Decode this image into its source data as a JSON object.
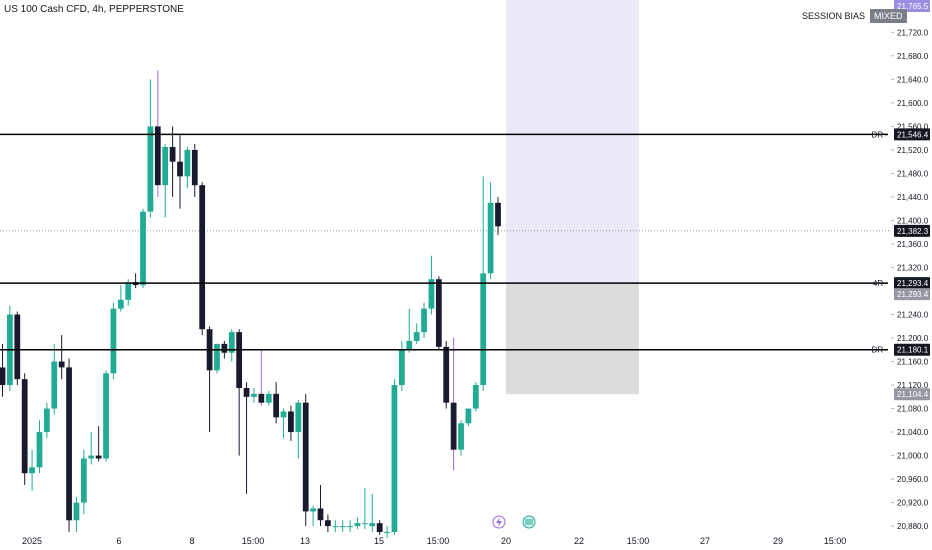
{
  "header": {
    "symbol_label": "US 100 Cash CFD, 4h, PEPPERSTONE"
  },
  "session_bias": {
    "label": "SESSION BIAS",
    "value": "MIXED"
  },
  "colors": {
    "up": "#22ab94",
    "down": "#1a1a2e",
    "wick_up": "#22ab94",
    "wick_spike": "#9c6ade",
    "level_line": "#000000",
    "lavender_zone": "#ece8f8",
    "gray_zone": "#dcdcdc",
    "current_price": "#131722",
    "ohlc_badge": "#9b8ee0"
  },
  "chart_data": {
    "type": "candlestick",
    "y_range": [
      20870,
      21775
    ],
    "y_ticks": [
      21720,
      21680,
      21640,
      21600,
      21560,
      21520,
      21480,
      21440,
      21400,
      21360,
      21320,
      21240,
      21200,
      21160,
      21120,
      21080,
      21040,
      21000,
      20960,
      20920,
      20880
    ],
    "x_ticks": [
      "2025",
      "6",
      "8",
      "15:00",
      "13",
      "15",
      "15:00",
      "20",
      "22",
      "15:00",
      "27",
      "29",
      "15:00"
    ],
    "levels": [
      {
        "label": "DR",
        "price": 21546.4
      },
      {
        "label": "4R",
        "price": 21293.4
      },
      {
        "label": "DR",
        "price": 21180.1
      }
    ],
    "price_badges": [
      {
        "price": 21765.5,
        "text": "21,765.5",
        "style": "lavender"
      },
      {
        "price": 21546.4,
        "text": "21,546.4",
        "style": "dark"
      },
      {
        "price": 21382.3,
        "text": "21,382.3",
        "style": "dark"
      },
      {
        "price": 21293.4,
        "text": "21,293.4",
        "style": "dark"
      },
      {
        "price": 21293.4,
        "text": "21,293.4",
        "style": "gray"
      },
      {
        "price": 21180.1,
        "text": "21,180.1",
        "style": "dark"
      },
      {
        "price": 21104.4,
        "text": "21,104.4",
        "style": "gray"
      }
    ],
    "current_price": 21382.3,
    "zones": [
      {
        "name": "lavender",
        "price_top": 21775,
        "price_bottom": 21293.4
      },
      {
        "name": "gray",
        "price_top": 21293.4,
        "price_bottom": 21104.4
      }
    ],
    "candles": [
      {
        "o": 21150,
        "h": 21190,
        "c": 21120,
        "l": 21100
      },
      {
        "o": 21120,
        "h": 21255,
        "c": 21240,
        "l": 21110
      },
      {
        "o": 21240,
        "h": 21245,
        "c": 21130,
        "l": 21120
      },
      {
        "o": 21130,
        "h": 21140,
        "c": 20970,
        "l": 20950
      },
      {
        "o": 20970,
        "h": 21010,
        "c": 20980,
        "l": 20940
      },
      {
        "o": 20980,
        "h": 21060,
        "c": 21040,
        "l": 20970
      },
      {
        "o": 21040,
        "h": 21090,
        "c": 21080,
        "l": 21030
      },
      {
        "o": 21080,
        "h": 21190,
        "c": 21160,
        "l": 21070
      },
      {
        "o": 21160,
        "h": 21205,
        "c": 21150,
        "l": 21130
      },
      {
        "o": 21150,
        "h": 21165,
        "c": 20890,
        "l": 20870
      },
      {
        "o": 20890,
        "h": 20930,
        "c": 20920,
        "l": 20870
      },
      {
        "o": 20920,
        "h": 21010,
        "c": 20995,
        "l": 20900
      },
      {
        "o": 20995,
        "h": 21040,
        "c": 21000,
        "l": 20985
      },
      {
        "o": 21000,
        "h": 21050,
        "c": 20995,
        "l": 20990
      },
      {
        "o": 20995,
        "h": 21145,
        "c": 21140,
        "l": 20990
      },
      {
        "o": 21140,
        "h": 21260,
        "c": 21250,
        "l": 21130
      },
      {
        "o": 21250,
        "h": 21290,
        "c": 21265,
        "l": 21245
      },
      {
        "o": 21265,
        "h": 21300,
        "c": 21295,
        "l": 21255
      },
      {
        "o": 21295,
        "h": 21310,
        "c": 21290,
        "l": 21285
      },
      {
        "o": 21290,
        "h": 21420,
        "c": 21415,
        "l": 21285
      },
      {
        "o": 21415,
        "h": 21640,
        "c": 21560,
        "l": 21405
      },
      {
        "o": 21560,
        "h": 21655,
        "c": 21460,
        "l": 21440
      },
      {
        "o": 21460,
        "h": 21530,
        "c": 21525,
        "l": 21405
      },
      {
        "o": 21525,
        "h": 21560,
        "c": 21500,
        "l": 21440
      },
      {
        "o": 21500,
        "h": 21545,
        "c": 21475,
        "l": 21420
      },
      {
        "o": 21475,
        "h": 21525,
        "c": 21520,
        "l": 21455
      },
      {
        "o": 21520,
        "h": 21530,
        "c": 21460,
        "l": 21440
      },
      {
        "o": 21460,
        "h": 21465,
        "c": 21215,
        "l": 21205
      },
      {
        "o": 21215,
        "h": 21220,
        "c": 21145,
        "l": 21040
      },
      {
        "o": 21145,
        "h": 21190,
        "c": 21190,
        "l": 21140
      },
      {
        "o": 21190,
        "h": 21195,
        "c": 21175,
        "l": 21165
      },
      {
        "o": 21175,
        "h": 21215,
        "c": 21210,
        "l": 21160
      },
      {
        "o": 21210,
        "h": 21215,
        "c": 21115,
        "l": 21000
      },
      {
        "o": 21115,
        "h": 21125,
        "c": 21100,
        "l": 20935
      },
      {
        "o": 21100,
        "h": 21115,
        "c": 21105,
        "l": 21090
      },
      {
        "o": 21105,
        "h": 21180,
        "c": 21090,
        "l": 21085
      },
      {
        "o": 21090,
        "h": 21110,
        "c": 21105,
        "l": 21085
      },
      {
        "o": 21105,
        "h": 21125,
        "c": 21065,
        "l": 21055
      },
      {
        "o": 21065,
        "h": 21080,
        "c": 21075,
        "l": 21030
      },
      {
        "o": 21075,
        "h": 21085,
        "c": 21040,
        "l": 21025
      },
      {
        "o": 21040,
        "h": 21095,
        "c": 21090,
        "l": 20995
      },
      {
        "o": 21090,
        "h": 21105,
        "c": 20905,
        "l": 20880
      },
      {
        "o": 20905,
        "h": 20915,
        "c": 20910,
        "l": 20880
      },
      {
        "o": 20910,
        "h": 20950,
        "c": 20890,
        "l": 20880
      },
      {
        "o": 20890,
        "h": 20900,
        "c": 20880,
        "l": 20870
      },
      {
        "o": 20880,
        "h": 20890,
        "c": 20880,
        "l": 20870
      },
      {
        "o": 20880,
        "h": 20890,
        "c": 20880,
        "l": 20870
      },
      {
        "o": 20880,
        "h": 20890,
        "c": 20880,
        "l": 20870
      },
      {
        "o": 20880,
        "h": 20895,
        "c": 20885,
        "l": 20875
      },
      {
        "o": 20885,
        "h": 20945,
        "c": 20885,
        "l": 20875
      },
      {
        "o": 20880,
        "h": 20935,
        "c": 20885,
        "l": 20870
      },
      {
        "o": 20885,
        "h": 20890,
        "c": 20870,
        "l": 20865
      },
      {
        "o": 20870,
        "h": 20880,
        "c": 20870,
        "l": 20860
      },
      {
        "o": 20870,
        "h": 21130,
        "c": 21120,
        "l": 20865
      },
      {
        "o": 21120,
        "h": 21195,
        "c": 21180,
        "l": 21110
      },
      {
        "o": 21180,
        "h": 21250,
        "c": 21195,
        "l": 21175
      },
      {
        "o": 21195,
        "h": 21225,
        "c": 21210,
        "l": 21190
      },
      {
        "o": 21210,
        "h": 21260,
        "c": 21250,
        "l": 21200
      },
      {
        "o": 21250,
        "h": 21340,
        "c": 21300,
        "l": 21240
      },
      {
        "o": 21300,
        "h": 21305,
        "c": 21185,
        "l": 21180
      },
      {
        "o": 21185,
        "h": 21195,
        "c": 21090,
        "l": 21080
      },
      {
        "o": 21090,
        "h": 21200,
        "c": 21010,
        "l": 20975
      },
      {
        "o": 21010,
        "h": 21060,
        "c": 21055,
        "l": 21000
      },
      {
        "o": 21055,
        "h": 21080,
        "c": 21080,
        "l": 21050
      },
      {
        "o": 21080,
        "h": 21125,
        "c": 21120,
        "l": 21075
      },
      {
        "o": 21120,
        "h": 21475,
        "c": 21310,
        "l": 21110
      },
      {
        "o": 21310,
        "h": 21465,
        "c": 21430,
        "l": 21300
      },
      {
        "o": 21430,
        "h": 21440,
        "c": 21390,
        "l": 21375
      }
    ]
  }
}
